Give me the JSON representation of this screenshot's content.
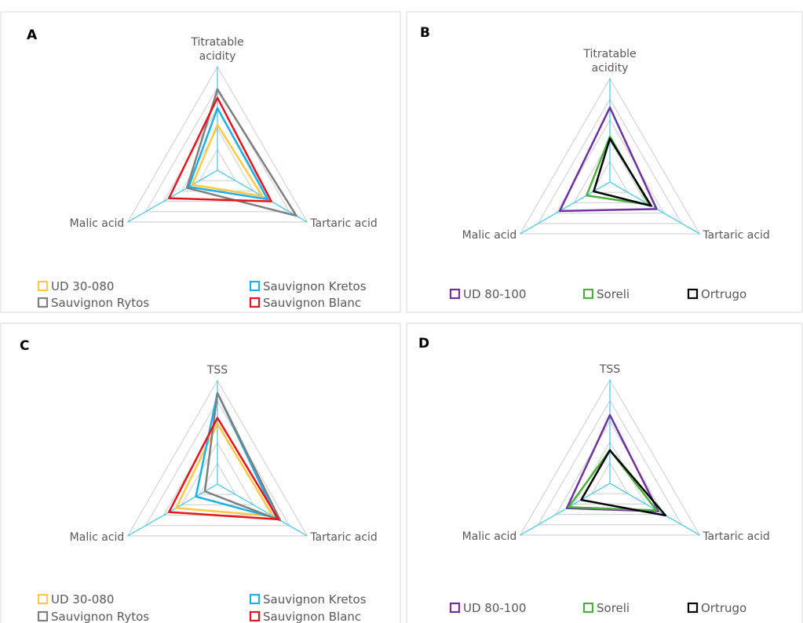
{
  "chart_data": [
    {
      "type": "radar",
      "label": "A",
      "categories": [
        "Titratable acidity",
        "Tartaric acid",
        "Malic acid"
      ],
      "rlim": [
        0,
        5
      ],
      "rticks": [
        1,
        2,
        3,
        4,
        5
      ],
      "series": [
        {
          "name": "UD 30-080",
          "color": "#ffc845",
          "values": [
            2.2,
            2.5,
            1.4
          ]
        },
        {
          "name": "Sauvignon Kretos",
          "color": "#1ab0e8",
          "values": [
            3.0,
            2.8,
            1.6
          ]
        },
        {
          "name": "Sauvignon Rytos",
          "color": "#7f7f7f",
          "values": [
            3.9,
            4.4,
            1.7
          ]
        },
        {
          "name": "Sauvignon Blanc",
          "color": "#e8141c",
          "values": [
            3.5,
            3.0,
            2.7
          ]
        }
      ]
    },
    {
      "type": "radar",
      "label": "B",
      "categories": [
        "Titratable acidity",
        "Tartaric acid",
        "Malic acid"
      ],
      "rlim": [
        0,
        5
      ],
      "rticks": [
        1,
        2,
        3,
        4,
        5
      ],
      "series": [
        {
          "name": "UD 80-100",
          "color": "#7030a0",
          "values": [
            3.6,
            2.6,
            2.8
          ]
        },
        {
          "name": "Soreli",
          "color": "#4caf3e",
          "values": [
            2.2,
            2.2,
            1.3
          ]
        },
        {
          "name": "Ortrugo",
          "color": "#000000",
          "values": [
            2.1,
            2.3,
            0.9
          ]
        }
      ]
    },
    {
      "type": "radar",
      "label": "C",
      "categories": [
        "TSS",
        "Tartaric acid",
        "Malic acid"
      ],
      "rlim": [
        0,
        5
      ],
      "rticks": [
        1,
        2,
        3,
        4,
        5
      ],
      "series": [
        {
          "name": "UD 30-080",
          "color": "#ffc845",
          "values": [
            2.9,
            3.1,
            2.3
          ]
        },
        {
          "name": "Sauvignon Kretos",
          "color": "#1ab0e8",
          "values": [
            4.4,
            3.3,
            1.2
          ]
        },
        {
          "name": "Sauvignon Rytos",
          "color": "#7f7f7f",
          "values": [
            4.4,
            3.5,
            0.7
          ]
        },
        {
          "name": "Sauvignon Blanc",
          "color": "#e8141c",
          "values": [
            3.2,
            3.4,
            2.7
          ]
        }
      ]
    },
    {
      "type": "radar",
      "label": "D",
      "categories": [
        "TSS",
        "Tartaric acid",
        "Malic acid"
      ],
      "rlim": [
        0,
        5
      ],
      "rticks": [
        1,
        2,
        3,
        4,
        5
      ],
      "series": [
        {
          "name": "UD 80-100",
          "color": "#7030a0",
          "values": [
            3.3,
            2.7,
            2.4
          ]
        },
        {
          "name": "Soreli",
          "color": "#4caf3e",
          "values": [
            1.6,
            2.6,
            2.3
          ]
        },
        {
          "name": "Ortrugo",
          "color": "#000000",
          "values": [
            1.6,
            3.1,
            1.6
          ]
        }
      ]
    }
  ]
}
